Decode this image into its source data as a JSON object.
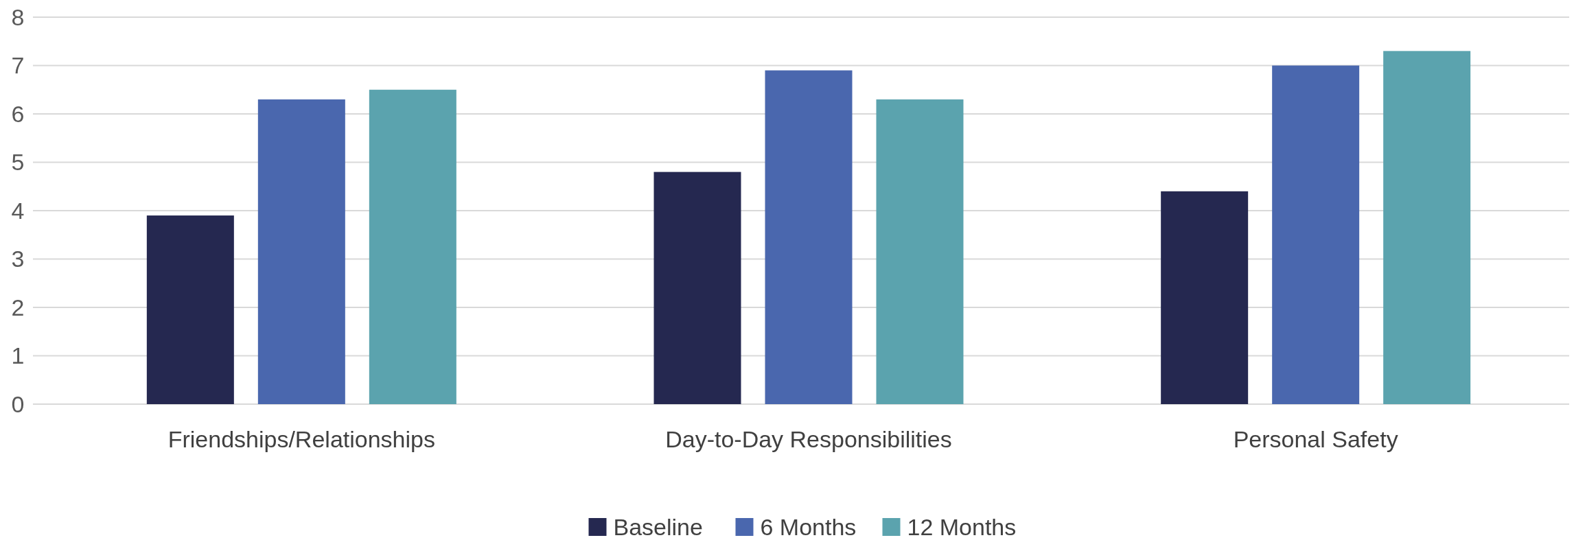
{
  "chart_data": {
    "type": "bar",
    "categories": [
      "Friendships/Relationships",
      "Day-to-Day Responsibilities",
      "Personal Safety"
    ],
    "series": [
      {
        "name": "Baseline",
        "color": "#252850",
        "values": [
          3.9,
          4.8,
          4.4
        ]
      },
      {
        "name": "6 Months",
        "color": "#4a67ae",
        "values": [
          6.3,
          6.9,
          7.0
        ]
      },
      {
        "name": "12 Months",
        "color": "#5ba3ae",
        "values": [
          6.5,
          6.3,
          7.3
        ]
      }
    ],
    "ylim": [
      0,
      8
    ],
    "yticks": [
      0,
      1,
      2,
      3,
      4,
      5,
      6,
      7,
      8
    ],
    "grid": "y",
    "legend": "bottom"
  }
}
